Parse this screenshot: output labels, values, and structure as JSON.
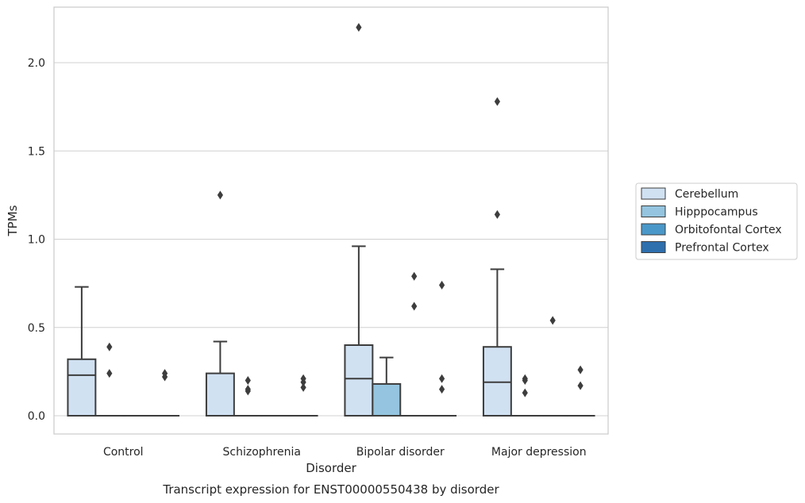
{
  "chart_data": {
    "type": "box",
    "title": "",
    "caption": "Transcript expression for ENST00000550438 by disorder",
    "xlabel": "Disorder",
    "ylabel": "TPMs",
    "ylim": [
      -0.1,
      2.33
    ],
    "yticks": [
      "0.0",
      "0.5",
      "1.0",
      "1.5",
      "2.0"
    ],
    "ytick_values": [
      0.0,
      0.5,
      1.0,
      1.5,
      2.0
    ],
    "grid": "horizontal",
    "legend_placement": "right",
    "categories": [
      "Control",
      "Schizophrenia",
      "Bipolar disorder",
      "Major depression"
    ],
    "series": [
      {
        "name": "Cerebellum",
        "color": "#d0e1f2",
        "boxes": [
          {
            "q1": 0.0,
            "median": 0.23,
            "q3": 0.32,
            "whisker_low": 0.0,
            "whisker_high": 0.73,
            "outliers": []
          },
          {
            "q1": 0.0,
            "median": 0.0,
            "q3": 0.24,
            "whisker_low": 0.0,
            "whisker_high": 0.42,
            "outliers": [
              1.25
            ]
          },
          {
            "q1": 0.0,
            "median": 0.21,
            "q3": 0.4,
            "whisker_low": 0.0,
            "whisker_high": 0.96,
            "outliers": [
              2.2
            ]
          },
          {
            "q1": 0.0,
            "median": 0.19,
            "q3": 0.39,
            "whisker_low": 0.0,
            "whisker_high": 0.83,
            "outliers": [
              1.14,
              1.78
            ]
          }
        ]
      },
      {
        "name": "Hipppocampus",
        "color": "#94c4df",
        "boxes": [
          {
            "q1": 0.0,
            "median": 0.0,
            "q3": 0.0,
            "whisker_low": 0.0,
            "whisker_high": 0.0,
            "outliers": [
              0.24,
              0.39
            ]
          },
          {
            "q1": 0.0,
            "median": 0.0,
            "q3": 0.0,
            "whisker_low": 0.0,
            "whisker_high": 0.0,
            "outliers": [
              0.14,
              0.15,
              0.2
            ]
          },
          {
            "q1": 0.0,
            "median": 0.0,
            "q3": 0.18,
            "whisker_low": 0.0,
            "whisker_high": 0.33,
            "outliers": []
          },
          {
            "q1": 0.0,
            "median": 0.0,
            "q3": 0.0,
            "whisker_low": 0.0,
            "whisker_high": 0.0,
            "outliers": [
              0.13,
              0.2,
              0.21
            ]
          }
        ]
      },
      {
        "name": "Orbitofontal Cortex",
        "color": "#4a98c9",
        "boxes": [
          {
            "q1": 0.0,
            "median": 0.0,
            "q3": 0.0,
            "whisker_low": 0.0,
            "whisker_high": 0.0,
            "outliers": []
          },
          {
            "q1": 0.0,
            "median": 0.0,
            "q3": 0.0,
            "whisker_low": 0.0,
            "whisker_high": 0.0,
            "outliers": []
          },
          {
            "q1": 0.0,
            "median": 0.0,
            "q3": 0.0,
            "whisker_low": 0.0,
            "whisker_high": 0.0,
            "outliers": [
              0.62,
              0.79
            ]
          },
          {
            "q1": 0.0,
            "median": 0.0,
            "q3": 0.0,
            "whisker_low": 0.0,
            "whisker_high": 0.0,
            "outliers": [
              0.54
            ]
          }
        ]
      },
      {
        "name": "Prefrontal Cortex",
        "color": "#2e6fae",
        "boxes": [
          {
            "q1": 0.0,
            "median": 0.0,
            "q3": 0.0,
            "whisker_low": 0.0,
            "whisker_high": 0.0,
            "outliers": [
              0.22,
              0.24
            ]
          },
          {
            "q1": 0.0,
            "median": 0.0,
            "q3": 0.0,
            "whisker_low": 0.0,
            "whisker_high": 0.0,
            "outliers": [
              0.16,
              0.19,
              0.21
            ]
          },
          {
            "q1": 0.0,
            "median": 0.0,
            "q3": 0.0,
            "whisker_low": 0.0,
            "whisker_high": 0.0,
            "outliers": [
              0.15,
              0.21,
              0.74
            ]
          },
          {
            "q1": 0.0,
            "median": 0.0,
            "q3": 0.0,
            "whisker_low": 0.0,
            "whisker_high": 0.0,
            "outliers": [
              0.17,
              0.26
            ]
          }
        ]
      }
    ]
  }
}
